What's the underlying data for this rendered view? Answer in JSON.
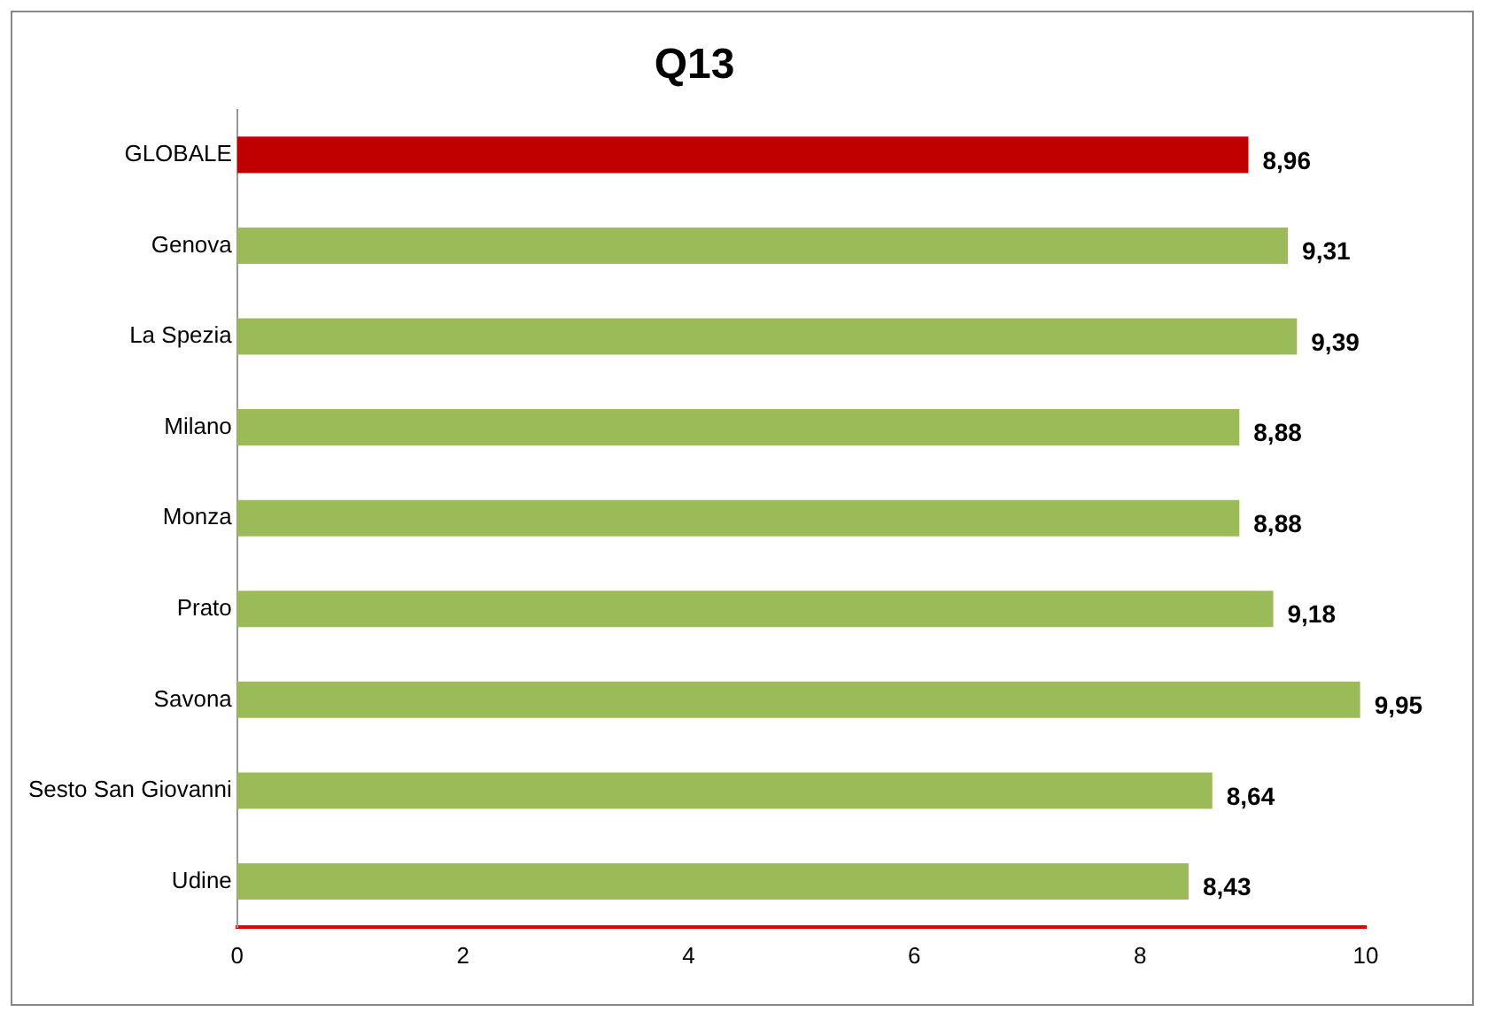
{
  "chart_data": {
    "type": "bar",
    "orientation": "horizontal",
    "title": "Q13",
    "categories": [
      "GLOBALE",
      "Genova",
      "La Spezia",
      "Milano",
      "Monza",
      "Prato",
      "Savona",
      "Sesto San Giovanni",
      "Udine"
    ],
    "values": [
      8.96,
      9.31,
      9.39,
      8.88,
      8.88,
      9.18,
      9.95,
      8.64,
      8.43
    ],
    "colors": [
      "#c00000",
      "#9bbb59",
      "#9bbb59",
      "#9bbb59",
      "#9bbb59",
      "#9bbb59",
      "#9bbb59",
      "#9bbb59",
      "#9bbb59"
    ],
    "value_labels": [
      "8,96",
      "9,31",
      "9,39",
      "8,88",
      "8,88",
      "9,18",
      "9,95",
      "8,64",
      "8,43"
    ],
    "xlim": [
      0,
      10
    ],
    "xticks": [
      0,
      2,
      4,
      6,
      8,
      10
    ],
    "grid": false,
    "legend": false
  }
}
